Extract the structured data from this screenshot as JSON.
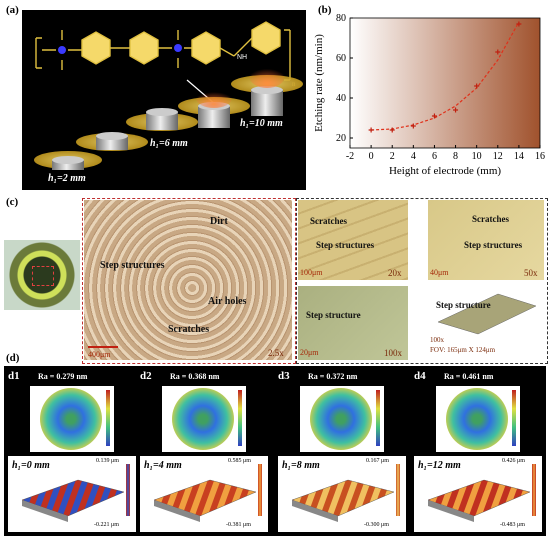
{
  "panel_a": {
    "label": "(a)",
    "h_labels": [
      "h₁=2 mm",
      "h₁=6 mm",
      "h₁=10 mm"
    ],
    "chem_labels": {
      "nh": "NH",
      "n_sub": "n"
    }
  },
  "panel_b": {
    "label": "(b)"
  },
  "chart_data": {
    "type": "scatter",
    "xlabel": "Height of electrode (mm)",
    "ylabel": "Etching rate (nm/min)",
    "xlim": [
      -2,
      16
    ],
    "ylim": [
      15,
      80
    ],
    "xticks": [
      -2,
      0,
      2,
      4,
      6,
      8,
      10,
      12,
      14,
      16
    ],
    "yticks": [
      20,
      40,
      60,
      80
    ],
    "x": [
      0,
      2,
      4,
      6,
      8,
      10,
      12,
      14
    ],
    "y": [
      24,
      24,
      26,
      31,
      34,
      46,
      63,
      77
    ],
    "fit": {
      "x": [
        0,
        2,
        4,
        6,
        8,
        10,
        12,
        14
      ],
      "y": [
        24,
        24.5,
        26.5,
        30,
        36,
        45,
        59,
        78
      ]
    },
    "background_gradient": [
      "#ffffff",
      "#a0522d"
    ]
  },
  "panel_c": {
    "label": "(c)",
    "main": {
      "dirt": "Dirt",
      "step_structures": "Step structures",
      "air_holes": "Air holes",
      "scratches": "Scratches",
      "scale": "400μm",
      "mag": "2.5x"
    },
    "tr1": {
      "scratches": "Scratches",
      "step": "Step structures",
      "scale": "100μm",
      "mag": "20x"
    },
    "tr2": {
      "scratches": "Scratches",
      "step": "Step structures",
      "scale": "40μm",
      "mag": "50x"
    },
    "br1": {
      "step": "Step structure",
      "scale": "20μm",
      "mag": "100x"
    },
    "br2": {
      "step": "Step structure",
      "mag": "100x",
      "fov": "FOV: 165μm X 124μm"
    }
  },
  "panel_d": {
    "label": "(d)",
    "items": [
      {
        "id": "d1",
        "ra": "Ra = 0.279 nm",
        "h": "h₁=0 mm",
        "top": "0.139 μm",
        "bottom": "-0.221 μm"
      },
      {
        "id": "d2",
        "ra": "Ra = 0.368 nm",
        "h": "h₁=4 mm",
        "top": "0.585 μm",
        "bottom": "-0.381 μm"
      },
      {
        "id": "d3",
        "ra": "Ra = 0.372 nm",
        "h": "h₁=8 mm",
        "top": "0.167 μm",
        "bottom": "-0.300 μm"
      },
      {
        "id": "d4",
        "ra": "Ra = 0.461 nm",
        "h": "h₁=12 mm",
        "top": "0.426 μm",
        "bottom": "-0.483 μm"
      }
    ]
  }
}
